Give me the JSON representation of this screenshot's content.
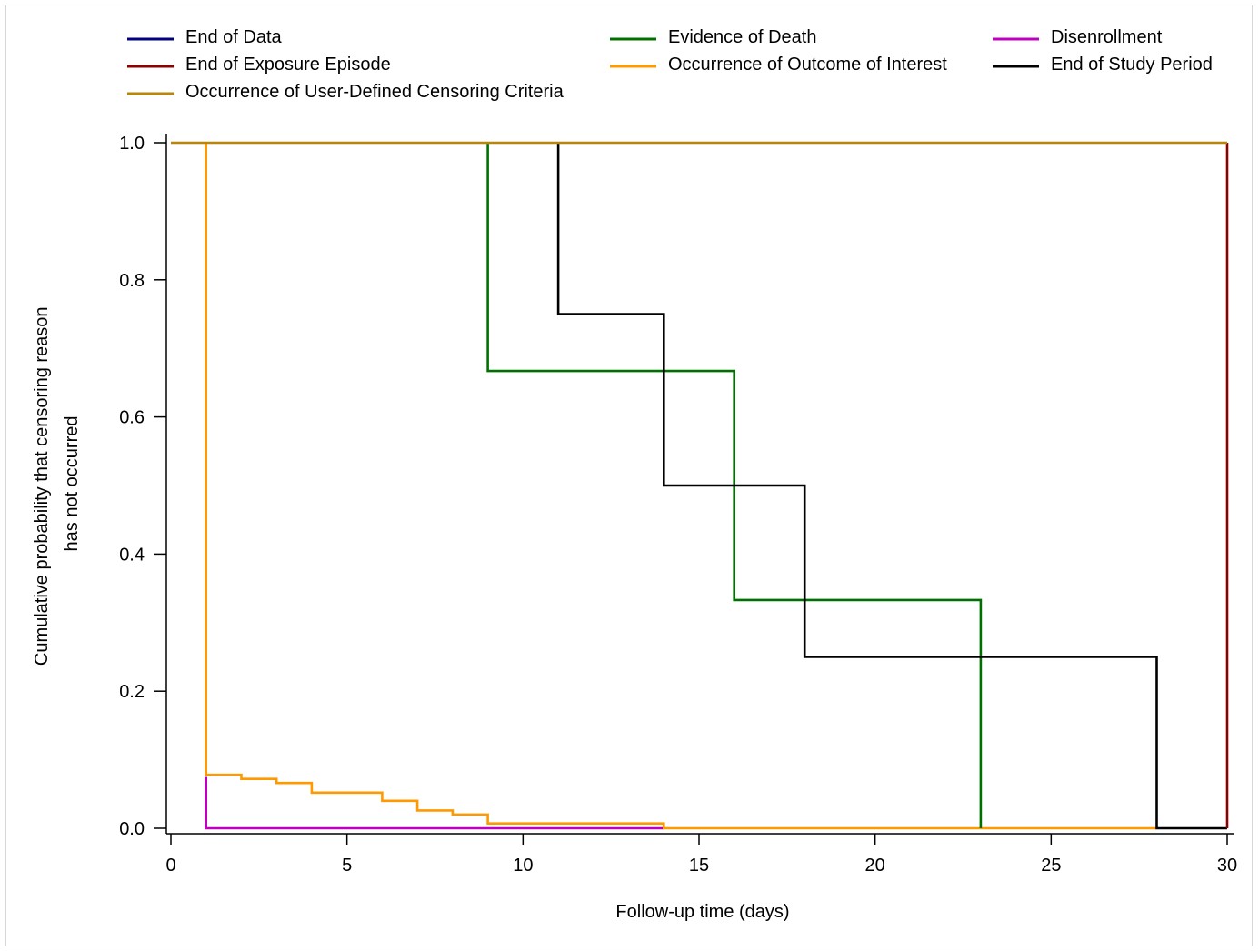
{
  "chart_data": {
    "type": "line",
    "step": true,
    "xlabel": "Follow-up time (days)",
    "ylabel_lines": [
      "Cumulative probability that censoring reason",
      "has not occurred"
    ],
    "xlim": [
      0,
      30
    ],
    "ylim": [
      0,
      1
    ],
    "xticks": [
      0,
      5,
      10,
      15,
      20,
      25,
      30
    ],
    "xtick_labels": [
      "0",
      "5",
      "10",
      "15",
      "20",
      "25",
      "30"
    ],
    "yticks": [
      0,
      0.2,
      0.4,
      0.6,
      0.8,
      1.0
    ],
    "ytick_labels": [
      "0.0",
      "0.2",
      "0.4",
      "0.6",
      "0.8",
      "1.0"
    ],
    "grid": false,
    "legend_position": "top",
    "series": [
      {
        "name": "Disenrollment",
        "color": "#c000c0",
        "points": [
          [
            1,
            0.075
          ],
          [
            1,
            0
          ],
          [
            14,
            0
          ]
        ]
      },
      {
        "name": "Occurrence of Outcome of Interest",
        "color": "#ff9900",
        "points": [
          [
            1,
            1
          ],
          [
            1,
            0.078
          ],
          [
            2,
            0.078
          ],
          [
            2,
            0.072
          ],
          [
            3,
            0.072
          ],
          [
            3,
            0.066
          ],
          [
            4,
            0.066
          ],
          [
            4,
            0.052
          ],
          [
            6,
            0.052
          ],
          [
            6,
            0.04
          ],
          [
            7,
            0.04
          ],
          [
            7,
            0.026
          ],
          [
            8,
            0.026
          ],
          [
            8,
            0.02
          ],
          [
            9,
            0.02
          ],
          [
            9,
            0.007
          ],
          [
            14,
            0.007
          ],
          [
            14,
            0
          ],
          [
            28,
            0
          ]
        ]
      },
      {
        "name": "Evidence of Death",
        "color": "#007000",
        "points": [
          [
            9,
            1
          ],
          [
            9,
            0.667
          ],
          [
            16,
            0.667
          ],
          [
            16,
            0.333
          ],
          [
            23,
            0.333
          ],
          [
            23,
            0
          ]
        ]
      },
      {
        "name": "End of Study Period",
        "color": "#000000",
        "points": [
          [
            11,
            1
          ],
          [
            11,
            0.75
          ],
          [
            14,
            0.75
          ],
          [
            14,
            0.5
          ],
          [
            18,
            0.5
          ],
          [
            18,
            0.25
          ],
          [
            28,
            0.25
          ],
          [
            28,
            0
          ],
          [
            30,
            0
          ]
        ]
      },
      {
        "name": "End of Data",
        "color": "#000080",
        "points": []
      },
      {
        "name": "End of Exposure Episode",
        "color": "#8b0000",
        "points": [
          [
            30,
            1
          ],
          [
            30,
            0
          ]
        ]
      },
      {
        "name": "Occurrence of User-Defined Censoring Criteria",
        "color": "#b8860b",
        "points": [
          [
            0,
            1
          ],
          [
            30,
            1
          ]
        ]
      }
    ],
    "legend": [
      {
        "name": "End of Data",
        "color": "#000080"
      },
      {
        "name": "Evidence of Death",
        "color": "#007000"
      },
      {
        "name": "Disenrollment",
        "color": "#c000c0"
      },
      {
        "name": "End of Exposure Episode",
        "color": "#8b0000"
      },
      {
        "name": "Occurrence of Outcome of Interest",
        "color": "#ff9900"
      },
      {
        "name": "End of Study Period",
        "color": "#000000"
      },
      {
        "name": "Occurrence of User-Defined Censoring Criteria",
        "color": "#b8860b"
      }
    ]
  }
}
